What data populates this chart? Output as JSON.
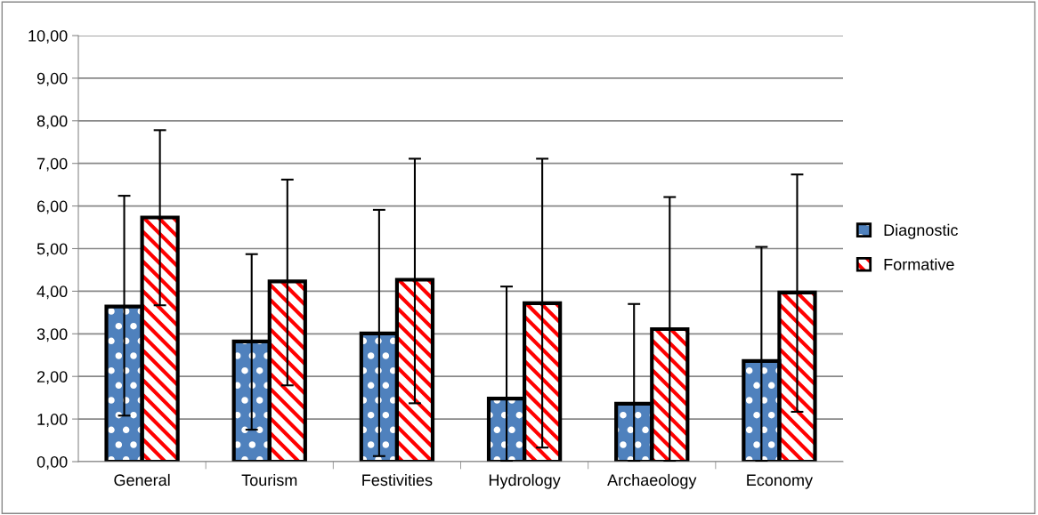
{
  "chart_data": {
    "type": "bar",
    "categories": [
      "General",
      "Tourism",
      "Festivities",
      "Hydrology",
      "Archaeology",
      "Economy"
    ],
    "series": [
      {
        "name": "Diagnostic",
        "color": "#4f81bd",
        "values": [
          3.64,
          2.82,
          3.01,
          1.48,
          1.36,
          2.36
        ],
        "errors": [
          [
            1.08,
            6.24
          ],
          [
            0.75,
            4.87
          ],
          [
            0.13,
            5.91
          ],
          [
            0,
            4.11
          ],
          [
            0,
            3.7
          ],
          [
            0,
            5.04
          ]
        ]
      },
      {
        "name": "Formative",
        "color": "#ff0000",
        "values": [
          5.73,
          4.23,
          4.27,
          3.72,
          3.11,
          3.97
        ],
        "errors": [
          [
            3.67,
            7.78
          ],
          [
            1.79,
            6.62
          ],
          [
            1.37,
            7.11
          ],
          [
            0.33,
            7.11
          ],
          [
            0,
            6.21
          ],
          [
            1.17,
            6.74
          ]
        ]
      }
    ],
    "ylim": [
      0,
      10
    ],
    "yticks": [
      {
        "value": 0,
        "label": "0,00"
      },
      {
        "value": 1,
        "label": "1,00"
      },
      {
        "value": 2,
        "label": "2,00"
      },
      {
        "value": 3,
        "label": "3,00"
      },
      {
        "value": 4,
        "label": "4,00"
      },
      {
        "value": 5,
        "label": "5,00"
      },
      {
        "value": 6,
        "label": "6,00"
      },
      {
        "value": 7,
        "label": "7,00"
      },
      {
        "value": 8,
        "label": "8,00"
      },
      {
        "value": 9,
        "label": "9,00"
      },
      {
        "value": 10,
        "label": "10,00"
      }
    ],
    "grid": "y",
    "legend": "right"
  }
}
